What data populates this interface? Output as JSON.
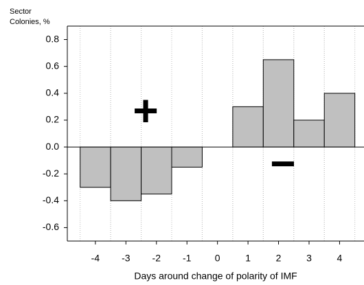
{
  "chart_data": {
    "type": "bar",
    "y_label": [
      "Sector",
      "Colonies, %"
    ],
    "x_label": "Days around change of polarity of IMF",
    "annotations": [
      "+",
      "−"
    ],
    "x": [
      -4,
      -3,
      -2,
      -1,
      0,
      1,
      2,
      3,
      4
    ],
    "values": [
      -0.3,
      -0.4,
      -0.35,
      -0.15,
      0,
      0.3,
      0.65,
      0.2,
      0.4
    ],
    "color": "#c0c0c0",
    "xlim": [
      -4.92,
      4.8
    ],
    "xticks": [
      -4,
      -3,
      -2,
      -1,
      0,
      1,
      2,
      3,
      4
    ],
    "ylim": [
      -0.7,
      0.9
    ],
    "yticks": [
      0.8,
      0.6,
      0.4,
      0.2,
      {
        "value": 0,
        "label": "0.0"
      },
      -0.2,
      -0.4,
      -0.6
    ]
  }
}
